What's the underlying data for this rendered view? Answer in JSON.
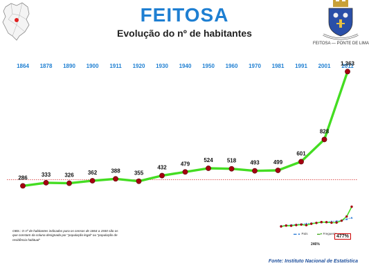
{
  "header": {
    "title": "FEITOSA",
    "subtitle": "Evolução do nº de habitantes"
  },
  "coat_of_arms": {
    "caption": "FEITOSA — PONTE DE LIMA"
  },
  "colors": {
    "title": "#1e7fd2",
    "year_labels": "#1e7fd2",
    "line": "#44dd22",
    "marker": "#a50010",
    "reference_line": "#d42020",
    "source": "#1e4f9c"
  },
  "chart_data": {
    "type": "line",
    "x": [
      "1864",
      "1878",
      "1890",
      "1900",
      "1911",
      "1920",
      "1930",
      "1940",
      "1950",
      "1960",
      "1970",
      "1981",
      "1991",
      "2001",
      "2011"
    ],
    "series": [
      {
        "values": [
          286,
          333,
          326,
          362,
          388,
          355,
          432,
          479,
          524,
          518,
          493,
          499,
          601,
          828,
          1363
        ],
        "labels": [
          "286",
          "333",
          "326",
          "362",
          "388",
          "355",
          "432",
          "479",
          "524",
          "518",
          "493",
          "499",
          "601",
          "828",
          "1.363"
        ]
      }
    ],
    "reference_line": {
      "value": 286,
      "style": "dotted"
    },
    "grid": false,
    "inset": {
      "type": "line",
      "legend": [
        "País",
        "Freguesia"
      ],
      "percent_freguesia": "477%",
      "percent_pais": "246%"
    }
  },
  "notes": {
    "obs": "OBS.: O nº de habitantes indicados para os censos de 1864 a 1930 são os que constam da coluna designada por \"população legal\" ou \"população de residência habitual\"",
    "source": "Fonte: Instituto Nacional de Estatística"
  }
}
